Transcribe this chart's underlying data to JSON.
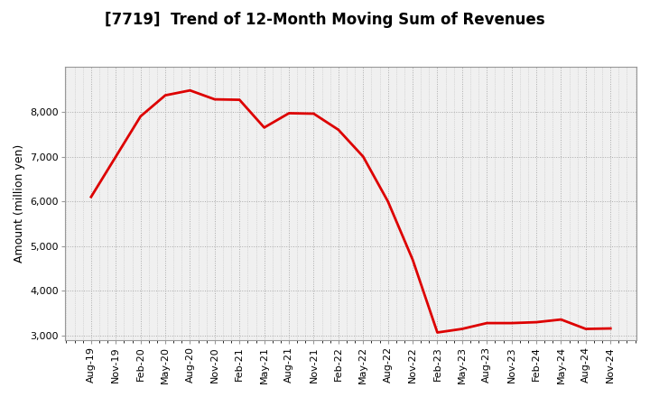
{
  "title": "[7719]  Trend of 12-Month Moving Sum of Revenues",
  "ylabel": "Amount (million yen)",
  "line_color": "#dd0000",
  "background_color": "#ffffff",
  "plot_bg_color": "#f0f0f0",
  "grid_color": "#aaaaaa",
  "title_fontsize": 12,
  "axis_fontsize": 9,
  "tick_fontsize": 8,
  "x_labels": [
    "Aug-19",
    "Nov-19",
    "Feb-20",
    "May-20",
    "Aug-20",
    "Nov-20",
    "Feb-21",
    "May-21",
    "Aug-21",
    "Nov-21",
    "Feb-22",
    "May-22",
    "Aug-22",
    "Nov-22",
    "Feb-23",
    "May-23",
    "Aug-23",
    "Nov-23",
    "Feb-24",
    "May-24",
    "Aug-24",
    "Nov-24"
  ],
  "y_values": [
    6100,
    7000,
    7900,
    8370,
    8480,
    8280,
    8270,
    7650,
    7970,
    7960,
    7600,
    7000,
    6000,
    4700,
    3070,
    3150,
    3280,
    3280,
    3300,
    3360,
    3150,
    3160
  ],
  "ylim": [
    2900,
    9000
  ],
  "yticks": [
    3000,
    4000,
    5000,
    6000,
    7000,
    8000
  ],
  "line_width": 2.0
}
